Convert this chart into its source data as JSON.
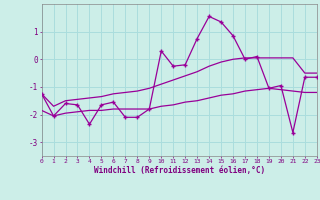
{
  "title": "",
  "xlabel": "Windchill (Refroidissement éolien,°C)",
  "background_color": "#cceee8",
  "grid_color": "#aadddd",
  "line_color": "#990099",
  "x": [
    0,
    1,
    2,
    3,
    4,
    5,
    6,
    7,
    8,
    9,
    10,
    11,
    12,
    13,
    14,
    15,
    16,
    17,
    18,
    19,
    20,
    21,
    22,
    23
  ],
  "y_main": [
    -1.25,
    -2.05,
    -1.6,
    -1.65,
    -2.35,
    -1.65,
    -1.55,
    -2.1,
    -2.1,
    -1.8,
    0.3,
    -0.25,
    -0.2,
    0.75,
    1.55,
    1.35,
    0.85,
    0.0,
    0.1,
    -1.05,
    -0.95,
    -2.65,
    -0.65,
    -0.65
  ],
  "y_upper": [
    -1.25,
    -1.7,
    -1.5,
    -1.45,
    -1.4,
    -1.35,
    -1.25,
    -1.2,
    -1.15,
    -1.05,
    -0.9,
    -0.75,
    -0.6,
    -0.45,
    -0.25,
    -0.1,
    0.0,
    0.05,
    0.05,
    0.05,
    0.05,
    0.05,
    -0.5,
    -0.5
  ],
  "y_lower": [
    -1.85,
    -2.05,
    -1.95,
    -1.9,
    -1.85,
    -1.85,
    -1.8,
    -1.8,
    -1.8,
    -1.8,
    -1.7,
    -1.65,
    -1.55,
    -1.5,
    -1.4,
    -1.3,
    -1.25,
    -1.15,
    -1.1,
    -1.05,
    -1.1,
    -1.15,
    -1.2,
    -1.2
  ],
  "ylim": [
    -3.5,
    2.0
  ],
  "yticks": [
    -3,
    -2,
    -1,
    0,
    1
  ],
  "xlim": [
    0,
    23
  ]
}
